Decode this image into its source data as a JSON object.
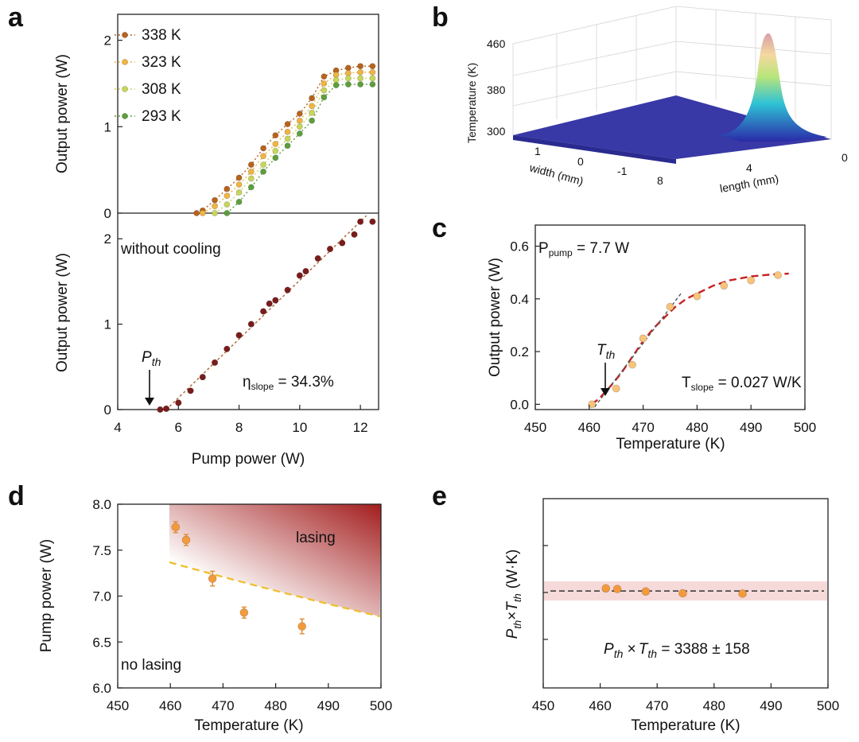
{
  "panel_labels": {
    "a": "a",
    "b": "b",
    "c": "c",
    "d": "d",
    "e": "e"
  },
  "colors": {
    "series_338": "#b8621d",
    "series_323": "#f0b441",
    "series_308": "#c7d65b",
    "series_293": "#5c9f3c",
    "no_cooling": "#7a1c1c",
    "orange_point": "#f49a3c",
    "fit_red": "#c82020",
    "boundary": "#f0c030",
    "lasing_dark": "#a31d1d"
  },
  "chart_data": [
    {
      "id": "a_top",
      "type": "line",
      "x": [
        6.6,
        6.8,
        7.2,
        7.6,
        8.0,
        8.4,
        8.8,
        9.2,
        9.6,
        10.0,
        10.4,
        10.8,
        11.2,
        11.6,
        12.0,
        12.4
      ],
      "xlim": [
        4,
        12.6
      ],
      "ylim": [
        0,
        2.3
      ],
      "ylabel": "Output power (W)",
      "yticks": [
        0,
        1,
        2
      ],
      "series": [
        {
          "name": "338 K",
          "x": [
            6.6,
            6.8,
            7.2,
            7.6,
            8.0,
            8.4,
            8.8,
            9.2,
            9.6,
            10.0,
            10.4,
            10.8,
            11.2,
            11.6,
            12.0,
            12.4
          ],
          "values": [
            0.0,
            0.03,
            0.15,
            0.28,
            0.41,
            0.56,
            0.75,
            0.9,
            1.03,
            1.15,
            1.33,
            1.58,
            1.65,
            1.68,
            1.7,
            1.7
          ]
        },
        {
          "name": "323 K",
          "x": [
            6.8,
            7.2,
            7.6,
            8.0,
            8.4,
            8.8,
            9.2,
            9.6,
            10.0,
            10.4,
            10.8,
            11.2,
            11.6,
            12.0,
            12.4
          ],
          "values": [
            0.0,
            0.08,
            0.2,
            0.33,
            0.48,
            0.66,
            0.8,
            0.94,
            1.07,
            1.24,
            1.5,
            1.6,
            1.62,
            1.63,
            1.63
          ]
        },
        {
          "name": "308 K",
          "x": [
            7.2,
            7.6,
            8.0,
            8.4,
            8.8,
            9.2,
            9.6,
            10.0,
            10.4,
            10.8,
            11.2,
            11.6,
            12.0,
            12.4
          ],
          "values": [
            0.0,
            0.1,
            0.24,
            0.4,
            0.56,
            0.72,
            0.86,
            1.0,
            1.16,
            1.42,
            1.54,
            1.56,
            1.56,
            1.56
          ]
        },
        {
          "name": "293 K",
          "x": [
            7.6,
            8.0,
            8.4,
            8.8,
            9.2,
            9.6,
            10.0,
            10.4,
            10.8,
            11.2,
            11.6,
            12.0,
            12.4
          ],
          "values": [
            0.0,
            0.13,
            0.3,
            0.48,
            0.64,
            0.78,
            0.92,
            1.07,
            1.34,
            1.48,
            1.49,
            1.49,
            1.49
          ]
        }
      ]
    },
    {
      "id": "a_bottom",
      "type": "scatter",
      "xlim": [
        4,
        12.6
      ],
      "ylim": [
        0,
        2.3
      ],
      "xlabel": "Pump power (W)",
      "ylabel": "Output power (W)",
      "xticks": [
        4,
        6,
        8,
        10,
        12
      ],
      "yticks": [
        0,
        1,
        2
      ],
      "x": [
        5.4,
        5.6,
        6.0,
        6.4,
        6.8,
        7.2,
        7.6,
        8.0,
        8.4,
        8.8,
        9.0,
        9.2,
        9.6,
        10.0,
        10.2,
        10.6,
        11.0,
        11.4,
        11.8,
        12.0,
        12.4
      ],
      "values": [
        0.0,
        0.01,
        0.08,
        0.22,
        0.38,
        0.55,
        0.71,
        0.87,
        1.0,
        1.15,
        1.24,
        1.28,
        1.4,
        1.57,
        1.62,
        1.77,
        1.88,
        1.95,
        2.05,
        2.2,
        2.2
      ],
      "fit": {
        "x": [
          5.6,
          12.2
        ],
        "values": [
          0.0,
          2.27
        ]
      },
      "text": {
        "condition": "without cooling",
        "pth_sym": "P",
        "pth_sub": "th",
        "eta_sym": "η",
        "eta_sub": "slope",
        "eta_val": " = 34.3%"
      }
    },
    {
      "id": "b",
      "type": "surface3d",
      "axis_labels": {
        "z": "Temperature (K)",
        "width": "width (mm)",
        "length": "length (mm)"
      },
      "zticks": [
        "460",
        "380",
        "300"
      ],
      "width_ticks": [
        "1",
        "0",
        "-1"
      ],
      "length_ticks": [
        "8",
        "4",
        "0"
      ]
    },
    {
      "id": "c",
      "type": "scatter",
      "xlim": [
        450,
        500
      ],
      "ylim": [
        -0.02,
        0.68
      ],
      "xlabel": "Temperature (K)",
      "ylabel": "Output power (W)",
      "xticks": [
        450,
        460,
        470,
        480,
        490,
        500
      ],
      "yticks": [
        0.0,
        0.2,
        0.4,
        0.6
      ],
      "x": [
        460.5,
        465,
        468,
        470,
        475,
        480,
        485,
        490,
        495
      ],
      "values": [
        0.0,
        0.06,
        0.15,
        0.25,
        0.37,
        0.41,
        0.45,
        0.47,
        0.49
      ],
      "fit": {
        "x": [
          460.5,
          462,
          464,
          466,
          468,
          470,
          472,
          474,
          476,
          478,
          480,
          483,
          486,
          490,
          494,
          497
        ],
        "values": [
          0.0,
          0.025,
          0.07,
          0.12,
          0.18,
          0.24,
          0.29,
          0.33,
          0.37,
          0.4,
          0.42,
          0.45,
          0.47,
          0.485,
          0.493,
          0.496
        ]
      },
      "slope_line": {
        "x": [
          461,
          477
        ],
        "values": [
          -0.01,
          0.42
        ]
      },
      "text": {
        "ppump_sym": "P",
        "ppump_sub": "pump",
        "ppump_val": " = 7.7 W",
        "tth_sym": "T",
        "tth_sub": "th",
        "tslope_sym": "T",
        "tslope_sub": "slope",
        "tslope_val": " = 0.027 W/K"
      }
    },
    {
      "id": "d",
      "type": "scatter",
      "xlim": [
        450,
        500
      ],
      "ylim": [
        6.0,
        8.0
      ],
      "xlabel": "Temperature (K)",
      "ylabel": "Pump power (W)",
      "xticks": [
        450,
        460,
        470,
        480,
        490,
        500
      ],
      "yticks": [
        6.0,
        6.5,
        7.0,
        7.5,
        8.0
      ],
      "x": [
        461,
        463,
        468,
        474,
        485
      ],
      "values": [
        7.75,
        7.61,
        7.19,
        6.82,
        6.67
      ],
      "errors": [
        0.06,
        0.06,
        0.08,
        0.06,
        0.08
      ],
      "curve_constant": 3388,
      "curve_xlim": [
        459.8,
        500
      ],
      "regions": {
        "upper": "lasing",
        "lower": "no lasing"
      }
    },
    {
      "id": "e",
      "type": "scatter",
      "xlim": [
        450,
        500
      ],
      "xlabel": "Temperature (K)",
      "ylabel_parts": [
        "P",
        "th",
        "×",
        "T",
        "th",
        "(W·K)"
      ],
      "xticks": [
        450,
        460,
        470,
        480,
        490,
        500
      ],
      "x": [
        461,
        463,
        468,
        474.5,
        485
      ],
      "values": [
        3430,
        3420,
        3380,
        3350,
        3345
      ],
      "mean": 3388,
      "band": 158,
      "display_ylim": [
        1800,
        4900
      ],
      "text": {
        "p": "P",
        "th": "th",
        "times": " ×",
        "t": "T",
        "eq": " = 3388 ± 158"
      }
    }
  ]
}
